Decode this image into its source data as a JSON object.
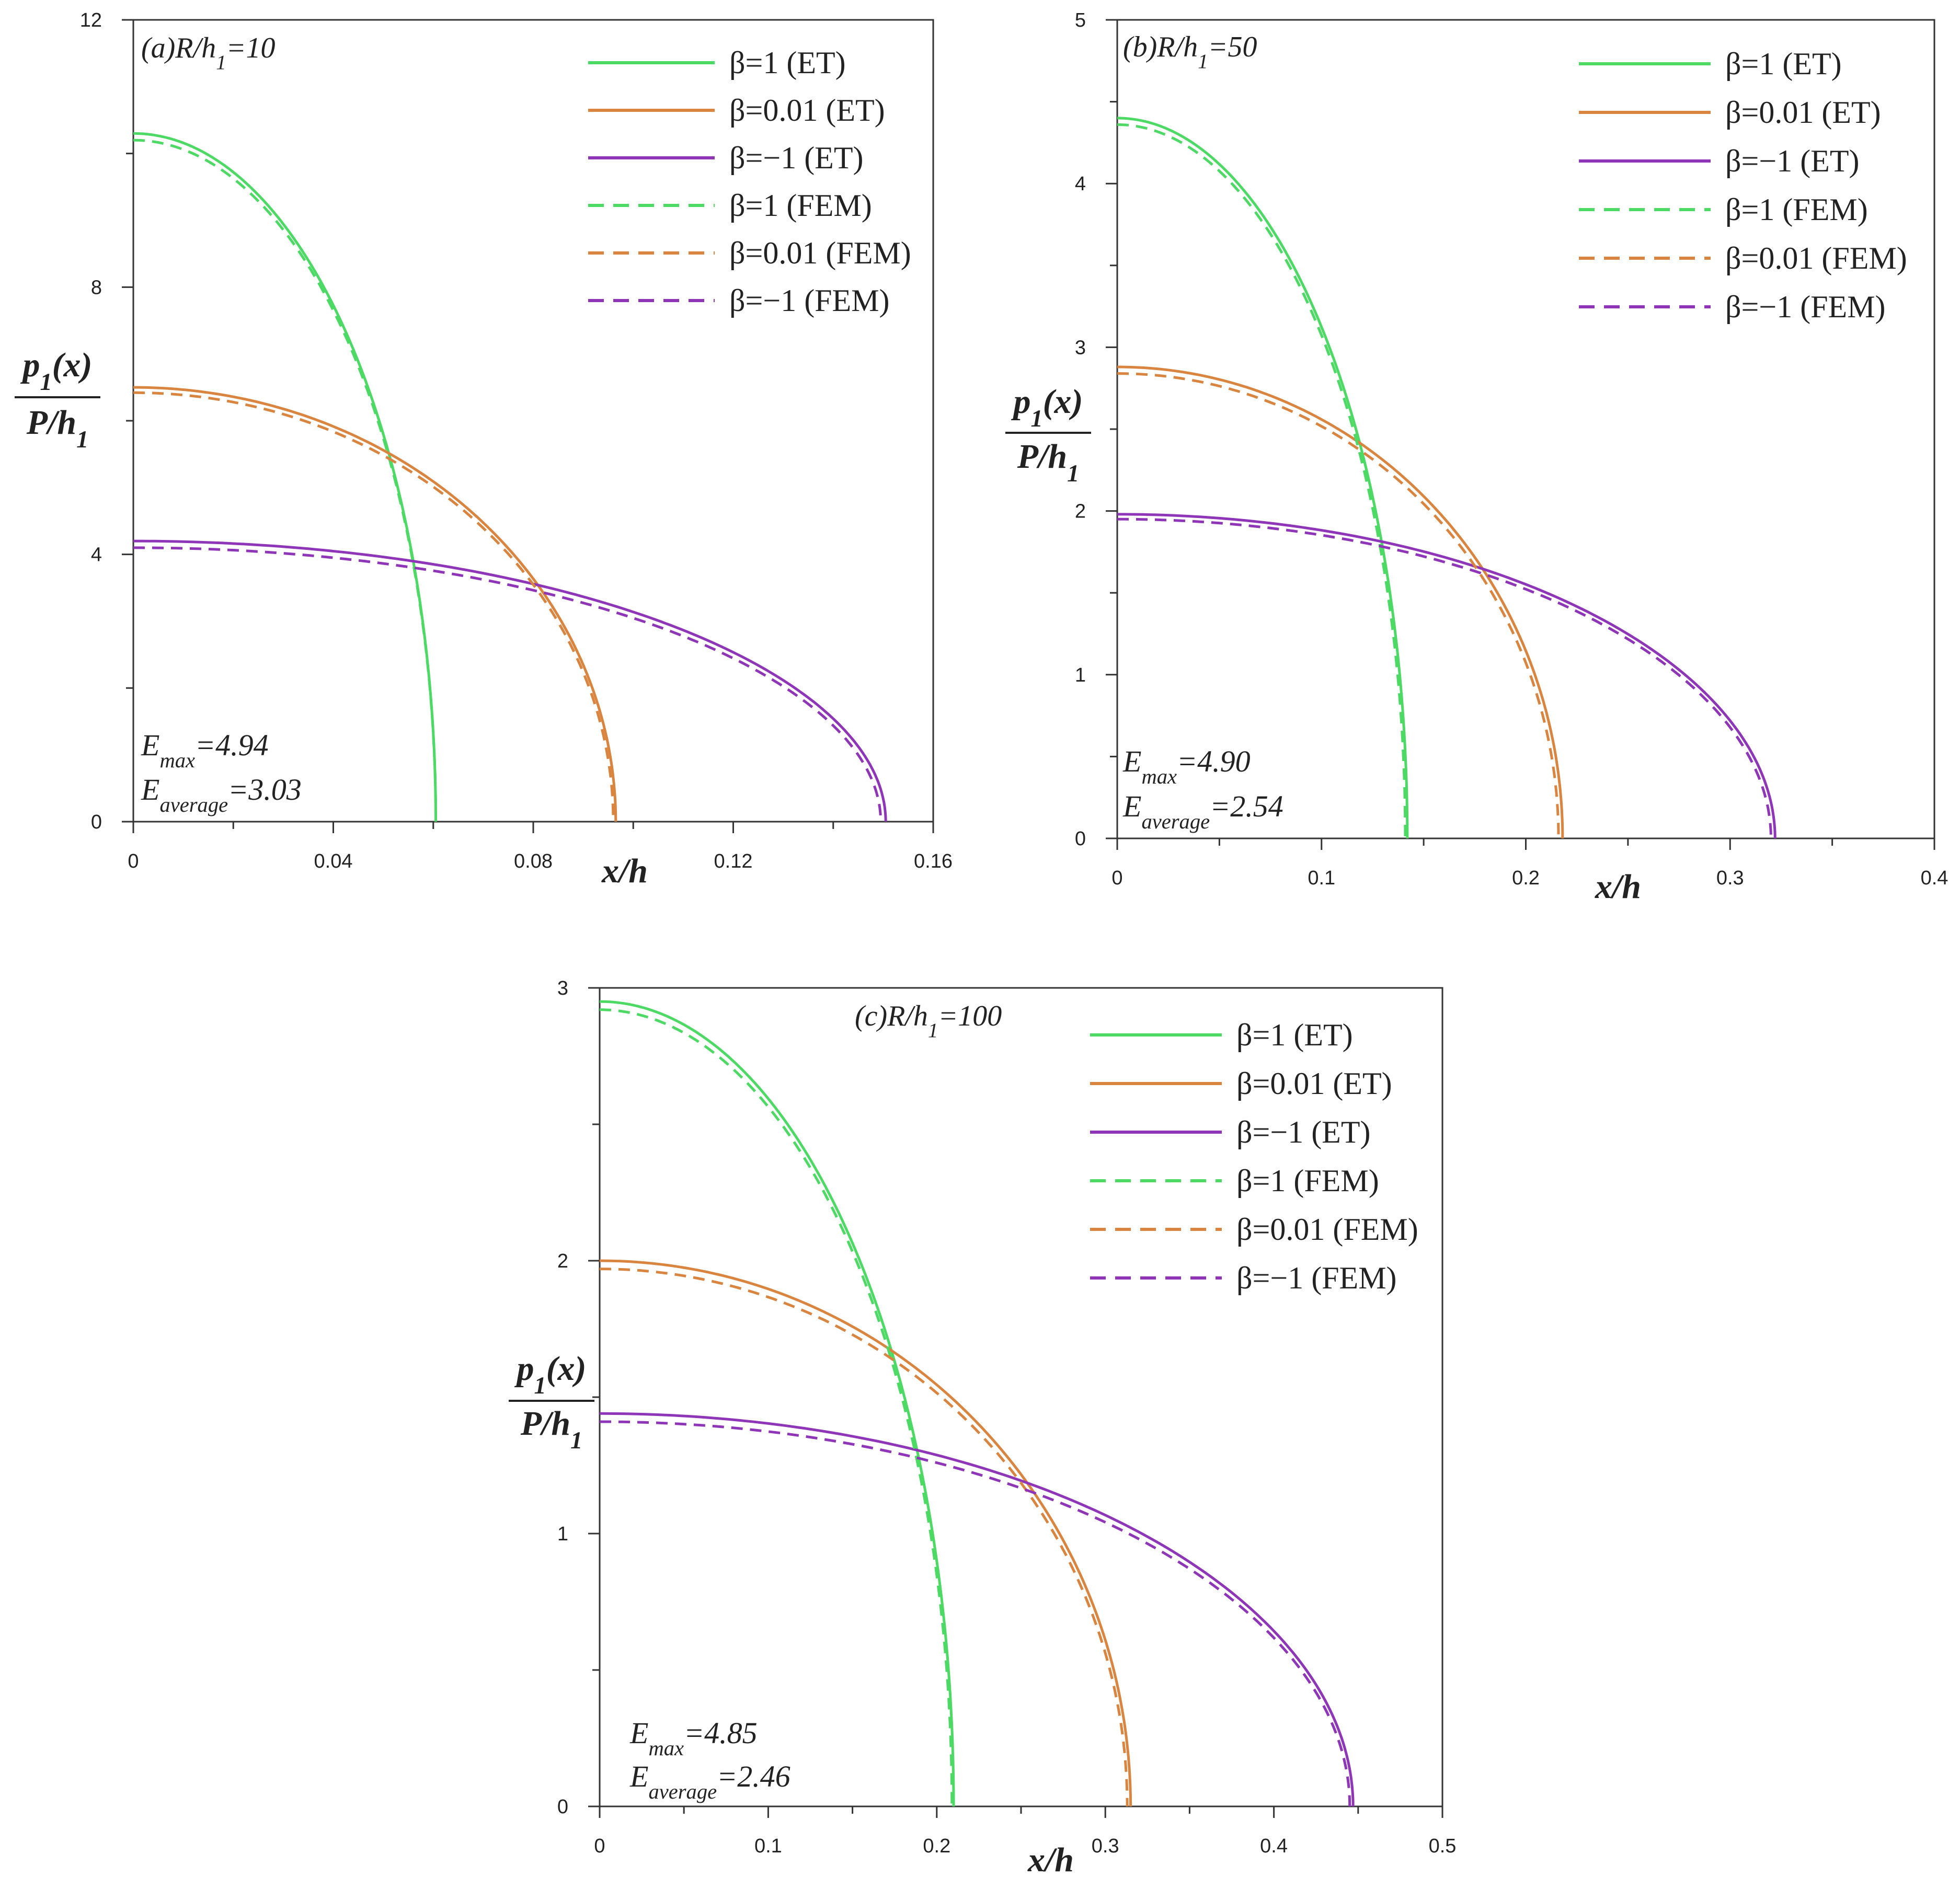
{
  "colors": {
    "beta_1": "#4cd964",
    "beta_0_01": "#d9843f",
    "beta_minus_1": "#8e35b8",
    "axis": "#333333"
  },
  "legend": [
    {
      "label": "β=1 (ET)",
      "color": "#4cd964",
      "dash": false
    },
    {
      "label": "β=0.01 (ET)",
      "color": "#d9843f",
      "dash": false
    },
    {
      "label": "β=−1 (ET)",
      "color": "#8e35b8",
      "dash": false
    },
    {
      "label": "β=1 (FEM)",
      "color": "#4cd964",
      "dash": true
    },
    {
      "label": "β=0.01 (FEM)",
      "color": "#d9843f",
      "dash": true
    },
    {
      "label": "β=−1 (FEM)",
      "color": "#8e35b8",
      "dash": true
    }
  ],
  "chart_data": [
    {
      "type": "line",
      "title": "(a)R/h1=10",
      "xlabel": "x/h",
      "ylabel_numerator": "p1(x)",
      "ylabel_denominator": "P/h1",
      "xlim": [
        0,
        0.16
      ],
      "ylim": [
        0,
        12
      ],
      "xticks": [
        0,
        0.04,
        0.08,
        0.12,
        0.16
      ],
      "xtick_labels": [
        "0",
        "0.04",
        "0.08",
        "0.12",
        "0.16"
      ],
      "yticks": [
        0,
        4,
        8,
        12
      ],
      "ytick_labels": [
        "0",
        "4",
        "8",
        "12"
      ],
      "grid": false,
      "legend_position": "top-right",
      "error_max": "E_max=4.94",
      "error_average": "E_average=3.03",
      "series": [
        {
          "name": "β=1 (ET)",
          "a": 0.0605,
          "p0": 10.3
        },
        {
          "name": "β=0.01 (ET)",
          "a": 0.0965,
          "p0": 6.5
        },
        {
          "name": "β=−1 (ET)",
          "a": 0.1505,
          "p0": 4.2
        },
        {
          "name": "β=1 (FEM)",
          "a": 0.0605,
          "p0": 10.2
        },
        {
          "name": "β=0.01 (FEM)",
          "a": 0.096,
          "p0": 6.42
        },
        {
          "name": "β=−1 (FEM)",
          "a": 0.1495,
          "p0": 4.1
        }
      ]
    },
    {
      "type": "line",
      "title": "(b)R/h1=50",
      "xlabel": "x/h",
      "ylabel_numerator": "p1(x)",
      "ylabel_denominator": "P/h1",
      "xlim": [
        0,
        0.4
      ],
      "ylim": [
        0,
        5
      ],
      "xticks": [
        0,
        0.1,
        0.2,
        0.3,
        0.4
      ],
      "xtick_labels": [
        "0",
        "0.1",
        "0.2",
        "0.3",
        "0.4"
      ],
      "yticks": [
        0,
        1,
        2,
        3,
        4,
        5
      ],
      "ytick_labels": [
        "0",
        "1",
        "2",
        "3",
        "4",
        "5"
      ],
      "grid": false,
      "legend_position": "top-right",
      "error_max": "E_max=4.90",
      "error_average": "E_average=2.54",
      "series": [
        {
          "name": "β=1 (ET)",
          "a": 0.142,
          "p0": 4.4
        },
        {
          "name": "β=0.01 (ET)",
          "a": 0.218,
          "p0": 2.88
        },
        {
          "name": "β=−1 (ET)",
          "a": 0.322,
          "p0": 1.98
        },
        {
          "name": "β=1 (FEM)",
          "a": 0.141,
          "p0": 4.36
        },
        {
          "name": "β=0.01 (FEM)",
          "a": 0.216,
          "p0": 2.84
        },
        {
          "name": "β=−1 (FEM)",
          "a": 0.32,
          "p0": 1.95
        }
      ]
    },
    {
      "type": "line",
      "title": "(c)R/h1=100",
      "xlabel": "x/h",
      "ylabel_numerator": "p1(x)",
      "ylabel_denominator": "P/h1",
      "xlim": [
        0,
        0.5
      ],
      "ylim": [
        0,
        3
      ],
      "xticks": [
        0,
        0.1,
        0.2,
        0.3,
        0.4,
        0.5
      ],
      "xtick_labels": [
        "0",
        "0.1",
        "0.2",
        "0.3",
        "0.4",
        "0.5"
      ],
      "yticks": [
        0,
        1,
        2,
        3
      ],
      "ytick_labels": [
        "0",
        "1",
        "2",
        "3"
      ],
      "grid": false,
      "legend_position": "top-right",
      "error_max": "E_max=4.85",
      "error_average": "E_average=2.46",
      "series": [
        {
          "name": "β=1 (ET)",
          "a": 0.21,
          "p0": 2.95
        },
        {
          "name": "β=0.01 (ET)",
          "a": 0.315,
          "p0": 2.0
        },
        {
          "name": "β=−1 (ET)",
          "a": 0.447,
          "p0": 1.44
        },
        {
          "name": "β=1 (FEM)",
          "a": 0.209,
          "p0": 2.92
        },
        {
          "name": "β=0.01 (FEM)",
          "a": 0.313,
          "p0": 1.97
        },
        {
          "name": "β=−1 (FEM)",
          "a": 0.445,
          "p0": 1.41
        }
      ]
    }
  ]
}
